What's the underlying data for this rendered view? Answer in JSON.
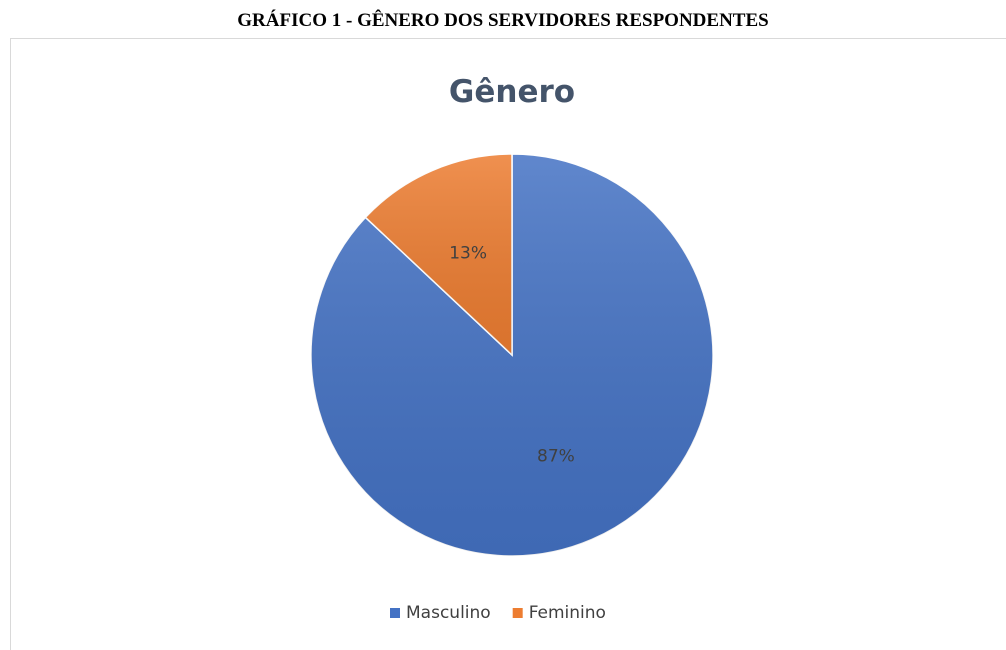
{
  "caption": "GRÁFICO 1 - GÊNERO DOS SERVIDORES RESPONDENTES",
  "chart_data": {
    "type": "pie",
    "title": "Gênero",
    "categories": [
      "Masculino",
      "Feminino"
    ],
    "values": [
      87,
      13
    ],
    "value_labels": [
      "87%",
      "13%"
    ],
    "colors": [
      "#4472c4",
      "#ed7d31"
    ],
    "legend": "bottom"
  }
}
